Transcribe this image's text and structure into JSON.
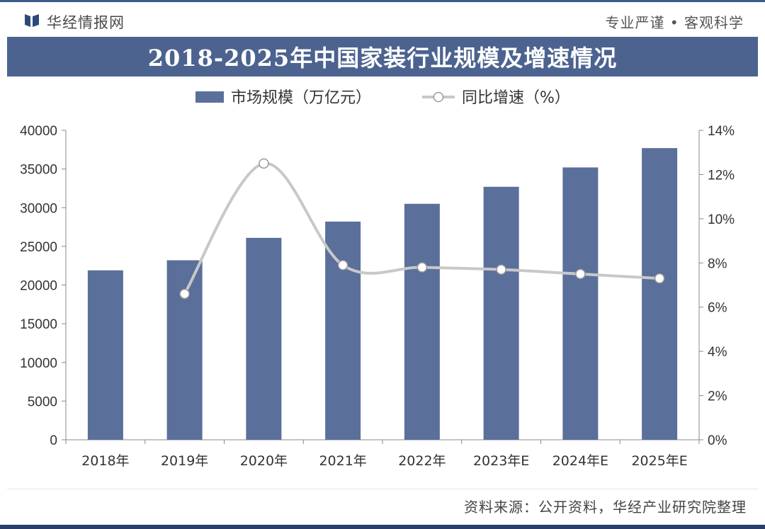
{
  "header": {
    "brand": "华经情报网",
    "slogan": "专业严谨 • 客观科学",
    "logo_icon": "bookmark-icon"
  },
  "chart_data": {
    "type": "bar",
    "title": "2018-2025年中国家装行业规模及增速情况",
    "categories": [
      "2018年",
      "2019年",
      "2020年",
      "2021年",
      "2022年",
      "2023年E",
      "2024年E",
      "2025年E"
    ],
    "series": [
      {
        "name": "市场规模（万亿元）",
        "type": "bar",
        "axis": "left",
        "color": "#5a6f9a",
        "values": [
          21900,
          23200,
          26100,
          28200,
          30500,
          32700,
          35200,
          37700
        ]
      },
      {
        "name": "同比增速（%）",
        "type": "line",
        "axis": "right",
        "color": "#c8c8c8",
        "values": [
          null,
          6.6,
          12.5,
          7.9,
          7.8,
          7.7,
          7.5,
          7.3
        ]
      }
    ],
    "y_left": {
      "min": 0,
      "max": 40000,
      "ticks": [
        "0",
        "5000",
        "10000",
        "15000",
        "20000",
        "25000",
        "30000",
        "35000",
        "40000"
      ]
    },
    "y_right": {
      "min": 0,
      "max": 14,
      "ticks": [
        "0%",
        "2%",
        "4%",
        "6%",
        "8%",
        "10%",
        "12%",
        "14%"
      ]
    },
    "legend_position": "top-center",
    "grid": false
  },
  "footer": {
    "source": "资料来源：公开资料，华经产业研究院整理"
  }
}
